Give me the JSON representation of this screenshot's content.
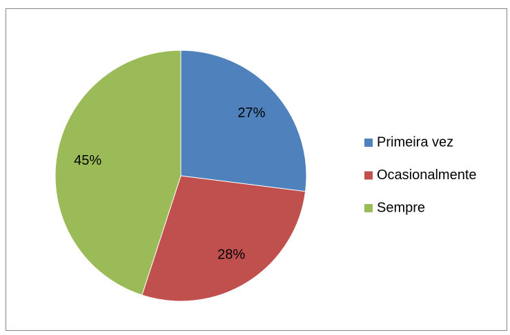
{
  "chart_data": {
    "type": "pie",
    "categories": [
      "Primeira vez",
      "Ocasionalmente",
      "Sempre"
    ],
    "values": [
      27,
      28,
      45
    ],
    "value_labels": [
      "27%",
      "28%",
      "45%"
    ],
    "colors": [
      "#4f81bd",
      "#c0504d",
      "#9bbb59"
    ],
    "legend": "right"
  }
}
